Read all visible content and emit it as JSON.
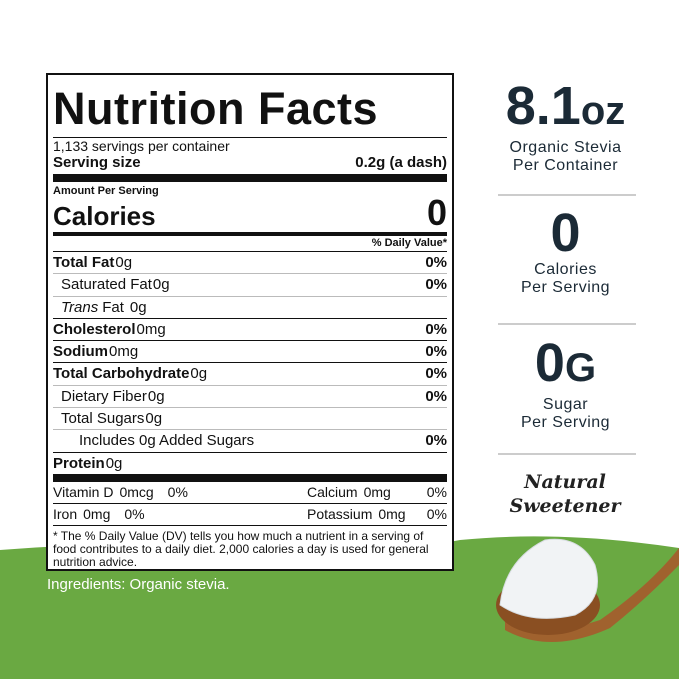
{
  "label": {
    "title": "Nutrition Facts",
    "servings": "1,133 servings per container",
    "serving_size_label": "Serving size",
    "serving_size": "0.2g (a dash)",
    "amount_per_serving": "Amount Per Serving",
    "calories_label": "Calories",
    "calories": "0",
    "dv_header": "% Daily Value*",
    "rows": [
      {
        "name": "Total Fat",
        "amount": "0g",
        "dv": "0%",
        "sub": [
          {
            "name": "Saturated Fat",
            "amount": "0g",
            "dv": "0%"
          },
          {
            "prefix": "Trans",
            "name": "Fat",
            "amount": "0g"
          }
        ]
      },
      {
        "name": "Cholesterol",
        "amount": "0mg",
        "dv": "0%"
      },
      {
        "name": "Sodium",
        "amount": "0mg",
        "dv": "0%"
      },
      {
        "name": "Total Carbohydrate",
        "amount": "0g",
        "dv": "0%",
        "sub": [
          {
            "name": "Dietary Fiber",
            "amount": "0g",
            "dv": "0%"
          },
          {
            "name": "Total Sugars",
            "amount": "0g",
            "sub": [
              {
                "name": "Includes 0g Added Sugars",
                "dv": "0%"
              }
            ]
          }
        ]
      },
      {
        "name": "Protein",
        "amount": "0g"
      }
    ],
    "micros": [
      [
        {
          "name": "Vitamin D",
          "amount": "0mcg",
          "dv": "0%"
        },
        {
          "name": "Calcium",
          "amount": "0mg",
          "dv": "0%"
        }
      ],
      [
        {
          "name": "Iron",
          "amount": "0mg",
          "dv": "0%"
        },
        {
          "name": "Potassium",
          "amount": "0mg",
          "dv": "0%"
        }
      ]
    ],
    "footnote": "* The % Daily Value (DV) tells you how much a nutrient in a serving of food contributes to a daily diet. 2,000 calories a day is used for general nutrition advice."
  },
  "ingredients": "Ingredients: Organic stevia.",
  "stats": [
    {
      "value": "8.1",
      "unit": "oz",
      "caption": [
        "Organic Stevia",
        "Per Container"
      ]
    },
    {
      "value": "0",
      "caption": [
        "Calories",
        "Per Serving"
      ]
    },
    {
      "value": "0",
      "unit": "G",
      "caption": [
        "Sugar",
        "Per Serving"
      ]
    }
  ],
  "badge": [
    "Natural",
    "Sweetener"
  ]
}
